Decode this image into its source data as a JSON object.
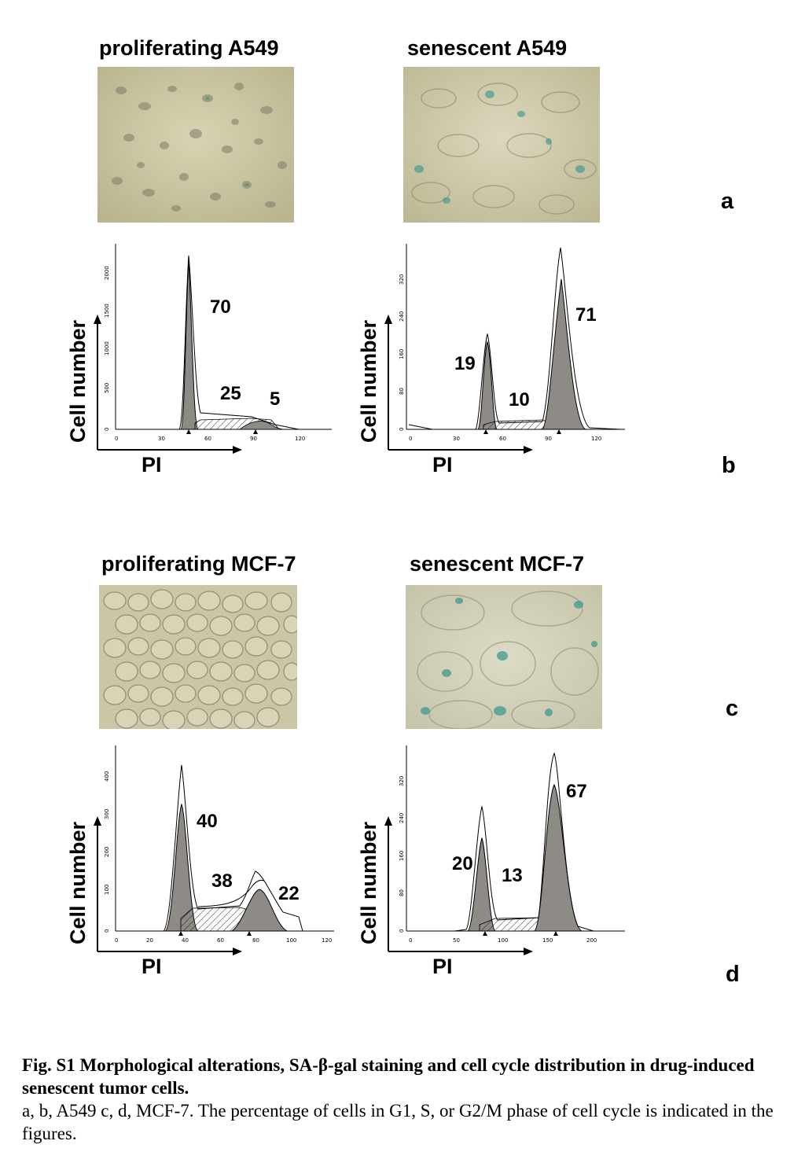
{
  "panels_top": {
    "left_title": "proliferating A549",
    "right_title": "senescent A549",
    "letter_a": "a",
    "letter_b": "b"
  },
  "panels_bottom": {
    "left_title": "proliferating MCF-7",
    "right_title": "senescent MCF-7",
    "letter_c": "c",
    "letter_d": "d"
  },
  "axis_text": {
    "y": "Cell number",
    "x": "PI"
  },
  "histograms": [
    {
      "id": "a549-prolif",
      "xticks": [
        "0",
        "30",
        "60",
        "90",
        "120"
      ],
      "yticks": [
        "0",
        "500",
        "1000",
        "1500",
        "2000"
      ],
      "pcts": [
        "70",
        "25",
        "5"
      ]
    },
    {
      "id": "a549-senes",
      "xticks": [
        "0",
        "30",
        "60",
        "90",
        "120"
      ],
      "yticks": [
        "0",
        "80",
        "160",
        "240",
        "320"
      ],
      "pcts": [
        "19",
        "10",
        "71"
      ]
    },
    {
      "id": "mcf7-prolif",
      "xticks": [
        "0",
        "20",
        "40",
        "60",
        "80",
        "100",
        "120"
      ],
      "yticks": [
        "0",
        "100",
        "200",
        "300",
        "400"
      ],
      "pcts": [
        "40",
        "38",
        "22"
      ]
    },
    {
      "id": "mcf7-senes",
      "xticks": [
        "0",
        "50",
        "100",
        "150",
        "200"
      ],
      "yticks": [
        "0",
        "80",
        "160",
        "240",
        "320"
      ],
      "pcts": [
        "20",
        "13",
        "67"
      ]
    }
  ],
  "caption": {
    "bold_line": "Fig. S1 Morphological alterations, SA-β-gal staining and cell cycle distribution in drug-induced senescent tumor cells.",
    "body": "a, b, A549 c, d, MCF-7. The percentage of cells in G1, S, or G2/M phase of cell cycle is indicated in the figures."
  },
  "colors": {
    "peak_fill": "#8e8a85",
    "photo_bg": "#c9c4a2",
    "stain": "#3f9a8e"
  }
}
